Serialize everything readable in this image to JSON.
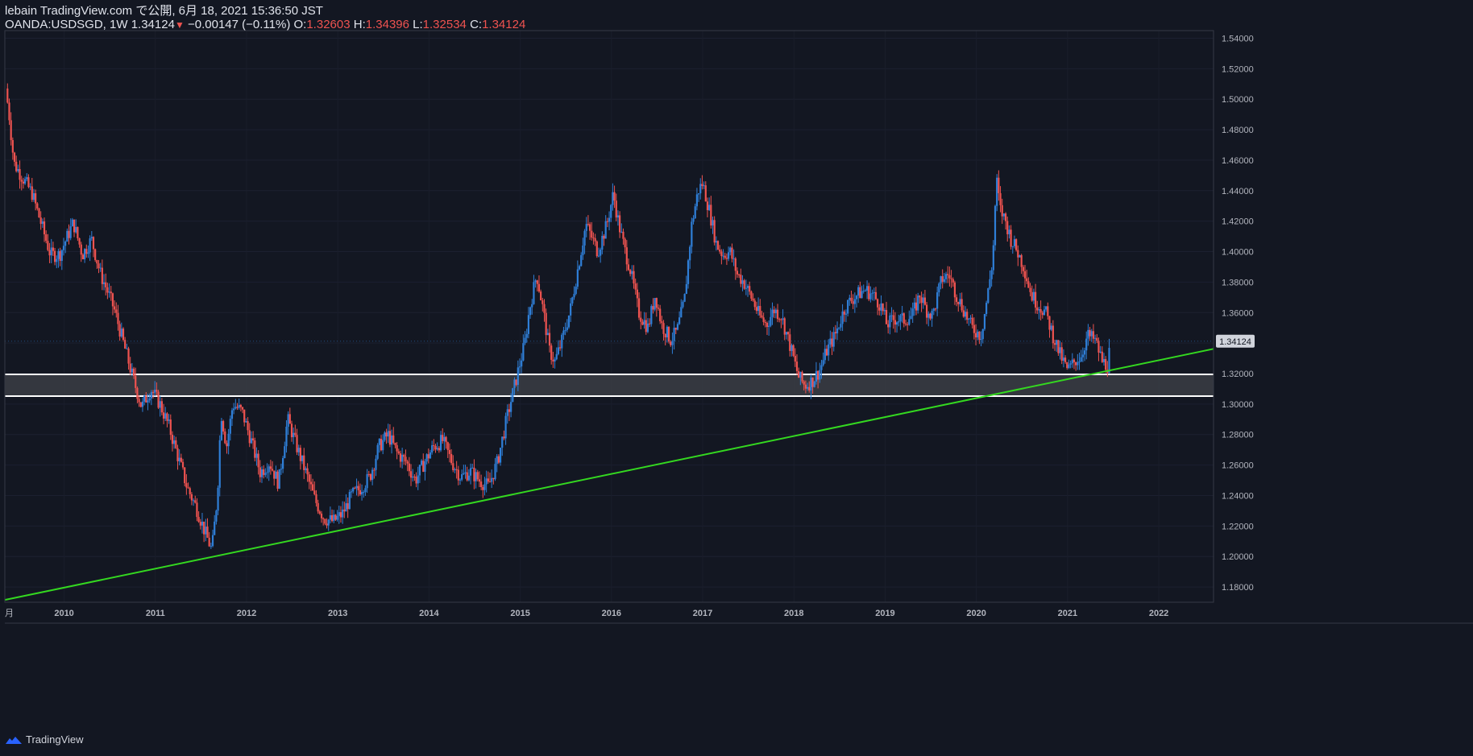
{
  "header": {
    "publish_line": "lebain TradingView.com で公開, 6月 18, 2021 15:36:50 JST",
    "symbol": "OANDA:USDSGD, 1W",
    "last": "1.34124",
    "change": "−0.00147 (−0.11%)",
    "o_label": "O:",
    "o_value": "1.32603",
    "h_label": "H:",
    "h_value": "1.34396",
    "l_label": "L:",
    "l_value": "1.32534",
    "c_label": "C:",
    "c_value": "1.34124"
  },
  "footer": {
    "brand": "TradingView"
  },
  "colors": {
    "background": "#131722",
    "up": "#2f7fd8",
    "down": "#ef5350",
    "trendline": "#34d820",
    "zone_fill": "#3b3d44",
    "zone_line": "#ffffff",
    "price_tag_bg": "#d1d4dc"
  },
  "chart_data": {
    "type": "candlestick",
    "title": "OANDA:USDSGD 1W",
    "ylim": [
      1.17,
      1.545
    ],
    "xlim": [
      2009.35,
      2022.6
    ],
    "y_ticks": [
      "1.54000",
      "1.52000",
      "1.50000",
      "1.48000",
      "1.46000",
      "1.44000",
      "1.42000",
      "1.40000",
      "1.38000",
      "1.36000",
      "1.34000",
      "1.32000",
      "1.30000",
      "1.28000",
      "1.26000",
      "1.24000",
      "1.22000",
      "1.20000",
      "1.18000"
    ],
    "x_ticks": [
      "2010",
      "2011",
      "2012",
      "2013",
      "2014",
      "2015",
      "2016",
      "2017",
      "2018",
      "2019",
      "2020",
      "2021",
      "2022"
    ],
    "x_start_label": "月",
    "last_price_label": "1.34124",
    "last_price": 1.34124,
    "support_zone": {
      "upper": 1.3195,
      "lower": 1.3052
    },
    "trendline": {
      "from": [
        2009.35,
        1.1715
      ],
      "to": [
        2022.6,
        1.3362
      ]
    },
    "price_path": [
      [
        2009.36,
        1.507
      ],
      [
        2009.4,
        1.488
      ],
      [
        2009.45,
        1.458
      ],
      [
        2009.55,
        1.448
      ],
      [
        2009.65,
        1.438
      ],
      [
        2009.75,
        1.418
      ],
      [
        2009.85,
        1.398
      ],
      [
        2009.95,
        1.398
      ],
      [
        2010.05,
        1.412
      ],
      [
        2010.1,
        1.419
      ],
      [
        2010.2,
        1.398
      ],
      [
        2010.3,
        1.408
      ],
      [
        2010.4,
        1.385
      ],
      [
        2010.45,
        1.378
      ],
      [
        2010.55,
        1.362
      ],
      [
        2010.65,
        1.34
      ],
      [
        2010.75,
        1.318
      ],
      [
        2010.85,
        1.298
      ],
      [
        2010.95,
        1.31
      ],
      [
        2011.05,
        1.3
      ],
      [
        2011.15,
        1.285
      ],
      [
        2011.25,
        1.265
      ],
      [
        2011.35,
        1.245
      ],
      [
        2011.45,
        1.232
      ],
      [
        2011.55,
        1.215
      ],
      [
        2011.62,
        1.204
      ],
      [
        2011.68,
        1.24
      ],
      [
        2011.72,
        1.295
      ],
      [
        2011.78,
        1.272
      ],
      [
        2011.85,
        1.3
      ],
      [
        2011.95,
        1.295
      ],
      [
        2012.05,
        1.276
      ],
      [
        2012.15,
        1.255
      ],
      [
        2012.25,
        1.262
      ],
      [
        2012.35,
        1.248
      ],
      [
        2012.45,
        1.29
      ],
      [
        2012.55,
        1.272
      ],
      [
        2012.65,
        1.255
      ],
      [
        2012.75,
        1.237
      ],
      [
        2012.85,
        1.225
      ],
      [
        2012.95,
        1.223
      ],
      [
        2013.05,
        1.228
      ],
      [
        2013.15,
        1.24
      ],
      [
        2013.25,
        1.245
      ],
      [
        2013.35,
        1.252
      ],
      [
        2013.45,
        1.272
      ],
      [
        2013.55,
        1.28
      ],
      [
        2013.65,
        1.268
      ],
      [
        2013.75,
        1.262
      ],
      [
        2013.85,
        1.25
      ],
      [
        2013.95,
        1.262
      ],
      [
        2014.05,
        1.272
      ],
      [
        2014.15,
        1.276
      ],
      [
        2014.25,
        1.262
      ],
      [
        2014.35,
        1.252
      ],
      [
        2014.45,
        1.256
      ],
      [
        2014.55,
        1.25
      ],
      [
        2014.65,
        1.246
      ],
      [
        2014.75,
        1.262
      ],
      [
        2014.85,
        1.29
      ],
      [
        2014.95,
        1.315
      ],
      [
        2015.05,
        1.34
      ],
      [
        2015.1,
        1.362
      ],
      [
        2015.18,
        1.385
      ],
      [
        2015.25,
        1.362
      ],
      [
        2015.32,
        1.335
      ],
      [
        2015.38,
        1.328
      ],
      [
        2015.45,
        1.34
      ],
      [
        2015.55,
        1.362
      ],
      [
        2015.65,
        1.395
      ],
      [
        2015.72,
        1.418
      ],
      [
        2015.78,
        1.41
      ],
      [
        2015.85,
        1.4
      ],
      [
        2015.95,
        1.418
      ],
      [
        2016.02,
        1.438
      ],
      [
        2016.08,
        1.418
      ],
      [
        2016.15,
        1.4
      ],
      [
        2016.2,
        1.39
      ],
      [
        2016.3,
        1.36
      ],
      [
        2016.4,
        1.35
      ],
      [
        2016.48,
        1.372
      ],
      [
        2016.55,
        1.352
      ],
      [
        2016.65,
        1.342
      ],
      [
        2016.72,
        1.348
      ],
      [
        2016.8,
        1.368
      ],
      [
        2016.88,
        1.418
      ],
      [
        2016.95,
        1.44
      ],
      [
        2017.0,
        1.445
      ],
      [
        2017.08,
        1.425
      ],
      [
        2017.15,
        1.405
      ],
      [
        2017.22,
        1.398
      ],
      [
        2017.3,
        1.4
      ],
      [
        2017.38,
        1.385
      ],
      [
        2017.45,
        1.38
      ],
      [
        2017.55,
        1.368
      ],
      [
        2017.62,
        1.358
      ],
      [
        2017.7,
        1.352
      ],
      [
        2017.78,
        1.362
      ],
      [
        2017.86,
        1.358
      ],
      [
        2017.95,
        1.34
      ],
      [
        2018.05,
        1.318
      ],
      [
        2018.12,
        1.312
      ],
      [
        2018.2,
        1.315
      ],
      [
        2018.28,
        1.322
      ],
      [
        2018.36,
        1.335
      ],
      [
        2018.45,
        1.345
      ],
      [
        2018.55,
        1.362
      ],
      [
        2018.62,
        1.368
      ],
      [
        2018.7,
        1.372
      ],
      [
        2018.78,
        1.375
      ],
      [
        2018.86,
        1.372
      ],
      [
        2018.95,
        1.365
      ],
      [
        2019.02,
        1.352
      ],
      [
        2019.1,
        1.356
      ],
      [
        2019.2,
        1.355
      ],
      [
        2019.3,
        1.358
      ],
      [
        2019.38,
        1.372
      ],
      [
        2019.45,
        1.362
      ],
      [
        2019.52,
        1.358
      ],
      [
        2019.62,
        1.382
      ],
      [
        2019.7,
        1.385
      ],
      [
        2019.78,
        1.372
      ],
      [
        2019.86,
        1.362
      ],
      [
        2019.95,
        1.35
      ],
      [
        2020.05,
        1.345
      ],
      [
        2020.12,
        1.37
      ],
      [
        2020.18,
        1.395
      ],
      [
        2020.22,
        1.448
      ],
      [
        2020.26,
        1.428
      ],
      [
        2020.32,
        1.42
      ],
      [
        2020.38,
        1.408
      ],
      [
        2020.45,
        1.4
      ],
      [
        2020.52,
        1.39
      ],
      [
        2020.6,
        1.372
      ],
      [
        2020.68,
        1.365
      ],
      [
        2020.76,
        1.36
      ],
      [
        2020.84,
        1.345
      ],
      [
        2020.92,
        1.332
      ],
      [
        2021.0,
        1.322
      ],
      [
        2021.08,
        1.328
      ],
      [
        2021.15,
        1.332
      ],
      [
        2021.22,
        1.345
      ],
      [
        2021.3,
        1.342
      ],
      [
        2021.38,
        1.328
      ],
      [
        2021.44,
        1.325
      ],
      [
        2021.47,
        1.341
      ]
    ]
  }
}
